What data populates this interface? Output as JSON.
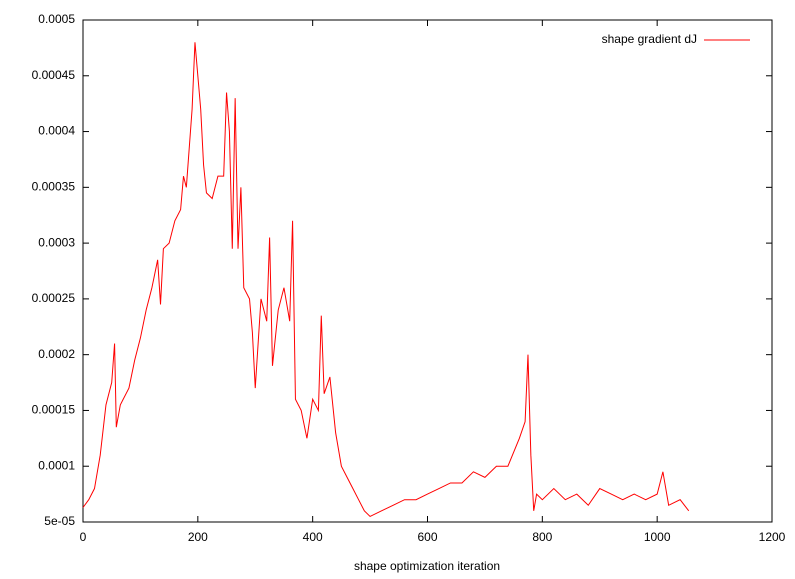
{
  "chart_data": {
    "type": "line",
    "x_label": "shape optimization iteration",
    "x": [
      0,
      10,
      20,
      30,
      40,
      50,
      55,
      58,
      65,
      70,
      80,
      90,
      100,
      110,
      120,
      130,
      135,
      140,
      150,
      160,
      170,
      175,
      180,
      190,
      195,
      200,
      205,
      210,
      215,
      225,
      235,
      245,
      250,
      255,
      260,
      265,
      270,
      275,
      280,
      290,
      295,
      300,
      310,
      320,
      325,
      330,
      340,
      350,
      360,
      365,
      370,
      380,
      390,
      400,
      410,
      415,
      420,
      430,
      440,
      450,
      460,
      470,
      480,
      490,
      500,
      520,
      540,
      560,
      580,
      600,
      620,
      640,
      660,
      680,
      700,
      720,
      740,
      760,
      770,
      775,
      780,
      785,
      790,
      800,
      820,
      840,
      860,
      880,
      900,
      920,
      940,
      960,
      980,
      1000,
      1010,
      1020,
      1040,
      1055
    ],
    "series": [
      {
        "name": "shape gradient dJ",
        "color": "#ff0000",
        "values": [
          6.3e-05,
          7e-05,
          8e-05,
          0.00011,
          0.000155,
          0.000175,
          0.00021,
          0.000135,
          0.000155,
          0.00016,
          0.00017,
          0.000195,
          0.000215,
          0.00024,
          0.00026,
          0.000285,
          0.000245,
          0.000295,
          0.0003,
          0.00032,
          0.00033,
          0.00036,
          0.00035,
          0.00042,
          0.00048,
          0.00045,
          0.00042,
          0.00037,
          0.000345,
          0.00034,
          0.00036,
          0.00036,
          0.000435,
          0.0004,
          0.000295,
          0.00043,
          0.000295,
          0.00035,
          0.00026,
          0.00025,
          0.00022,
          0.00017,
          0.00025,
          0.00023,
          0.000305,
          0.00019,
          0.00024,
          0.00026,
          0.00023,
          0.00032,
          0.00016,
          0.00015,
          0.000125,
          0.00016,
          0.00015,
          0.000235,
          0.000165,
          0.00018,
          0.00013,
          0.0001,
          9e-05,
          8e-05,
          7e-05,
          6e-05,
          5.5e-05,
          6e-05,
          6.5e-05,
          7e-05,
          7e-05,
          7.5e-05,
          8e-05,
          8.5e-05,
          8.5e-05,
          9.5e-05,
          9e-05,
          0.0001,
          0.0001,
          0.000125,
          0.00014,
          0.0002,
          0.00011,
          6e-05,
          7.5e-05,
          7e-05,
          8e-05,
          7e-05,
          7.5e-05,
          6.5e-05,
          8e-05,
          7.5e-05,
          7e-05,
          7.5e-05,
          7e-05,
          7.5e-05,
          9.5e-05,
          6.5e-05,
          7e-05,
          6e-05
        ]
      }
    ],
    "xlim": [
      0,
      1200
    ],
    "xticks": [
      0,
      200,
      400,
      600,
      800,
      1000,
      1200
    ],
    "ylim": [
      5e-05,
      0.0005
    ],
    "yticks": [
      {
        "value": 5e-05,
        "label": "5e-05"
      },
      0.0001,
      0.00015,
      0.0002,
      0.00025,
      0.0003,
      0.00035,
      0.0004,
      0.00045,
      0.0005
    ],
    "legend": "top right",
    "grid": false
  }
}
